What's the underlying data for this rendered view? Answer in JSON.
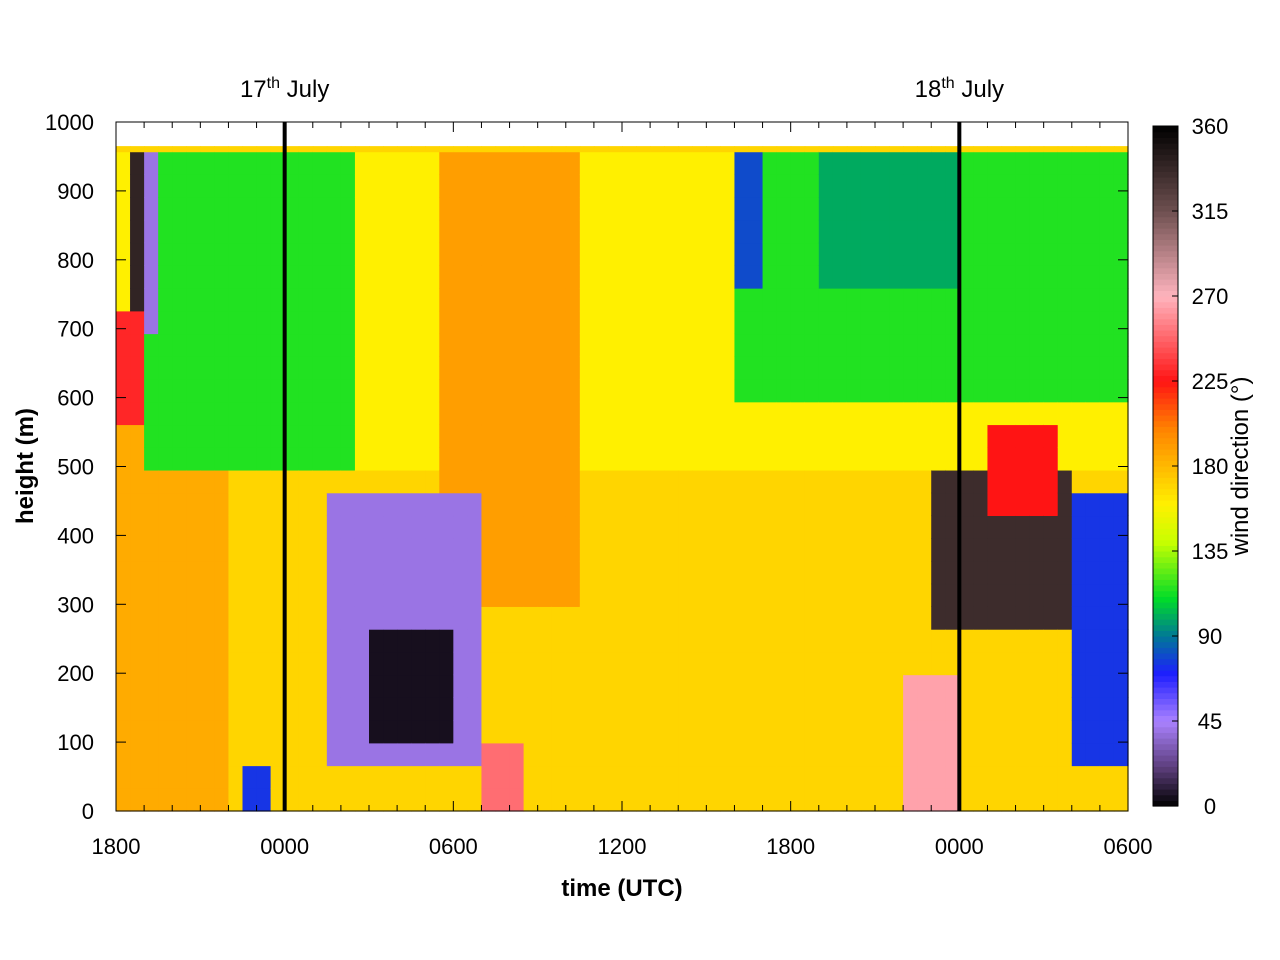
{
  "chart_data": {
    "type": "heatmap",
    "title": "",
    "xlabel": "time (UTC)",
    "ylabel": "height (m)",
    "x_unit": "hours since 1800 UTC 16 July",
    "xlim": [
      0,
      36
    ],
    "ylim": [
      0,
      1000
    ],
    "x_ticks": [
      {
        "value": 0,
        "label": "1800"
      },
      {
        "value": 6,
        "label": "0000"
      },
      {
        "value": 12,
        "label": "0600"
      },
      {
        "value": 18,
        "label": "1200"
      },
      {
        "value": 24,
        "label": "1800"
      },
      {
        "value": 30,
        "label": "0000"
      },
      {
        "value": 36,
        "label": "0600"
      }
    ],
    "y_ticks": [
      0,
      100,
      200,
      300,
      400,
      500,
      600,
      700,
      800,
      900,
      1000
    ],
    "colorbar": {
      "label": "wind direction (°)",
      "range": [
        0,
        360
      ],
      "ticks": [
        0,
        45,
        90,
        135,
        180,
        225,
        270,
        315,
        360
      ]
    },
    "annotations": [
      {
        "x": 6,
        "base": "17",
        "sup": "th",
        "rest": " July"
      },
      {
        "x": 30,
        "base": "18",
        "sup": "th",
        "rest": " July"
      }
    ],
    "data_top_height": 965,
    "grid": {
      "dx_hours": 0.5,
      "dz_m": 33
    },
    "field_description": "Wind direction (degrees) as a function of time and height; values are sampled from the regions shaded in the plot.",
    "background_direction": 170,
    "regions": [
      {
        "name": "upper-levels",
        "t": [
          0,
          36
        ],
        "z": [
          500,
          965
        ],
        "value": 160
      },
      {
        "name": "upper-orange-band",
        "t": [
          11.5,
          16.5
        ],
        "z": [
          300,
          965
        ],
        "value": 190
      },
      {
        "name": "orange-evening-first",
        "t": [
          0,
          4
        ],
        "z": [
          0,
          550
        ],
        "value": 185
      },
      {
        "name": "early-blue",
        "t": [
          1.5,
          7.5
        ],
        "z": [
          560,
          965
        ],
        "value": 75
      },
      {
        "name": "early-green",
        "t": [
          1.0,
          8.5
        ],
        "z": [
          500,
          965
        ],
        "value": 115
      },
      {
        "name": "early-violet-column",
        "t": [
          1.0,
          1.5
        ],
        "z": [
          700,
          965
        ],
        "value": 40
      },
      {
        "name": "early-dark-column",
        "t": [
          0.5,
          1.0
        ],
        "z": [
          700,
          965
        ],
        "value": 340
      },
      {
        "name": "early-red-patch",
        "t": [
          0,
          1.0
        ],
        "z": [
          570,
          720
        ],
        "value": 230
      },
      {
        "name": "late-green",
        "t": [
          22,
          36
        ],
        "z": [
          600,
          965
        ],
        "value": 115
      },
      {
        "name": "late-teal-core",
        "t": [
          25,
          30
        ],
        "z": [
          750,
          965
        ],
        "value": 100
      },
      {
        "name": "late-blue-streak",
        "t": [
          22,
          23
        ],
        "z": [
          750,
          965
        ],
        "value": 80
      },
      {
        "name": "night-violet-blob",
        "t": [
          7.5,
          13
        ],
        "z": [
          50,
          470
        ],
        "value": 40
      },
      {
        "name": "night-dark-core",
        "t": [
          9,
          12
        ],
        "z": [
          100,
          260
        ],
        "value": 5
      },
      {
        "name": "early-surface-blue",
        "t": [
          4.5,
          5.5
        ],
        "z": [
          0,
          70
        ],
        "value": 75
      },
      {
        "name": "dawn-red-streak",
        "t": [
          13,
          14.5
        ],
        "z": [
          0,
          110
        ],
        "value": 250
      },
      {
        "name": "second-night-dark",
        "t": [
          29,
          34
        ],
        "z": [
          250,
          480
        ],
        "value": 335
      },
      {
        "name": "second-night-red",
        "t": [
          31,
          33.5
        ],
        "z": [
          420,
          560
        ],
        "value": 225
      },
      {
        "name": "second-night-pink",
        "t": [
          28,
          30
        ],
        "z": [
          0,
          200
        ],
        "value": 265
      },
      {
        "name": "late-blue-column",
        "t": [
          34,
          36
        ],
        "z": [
          50,
          450
        ],
        "value": 75
      }
    ]
  }
}
